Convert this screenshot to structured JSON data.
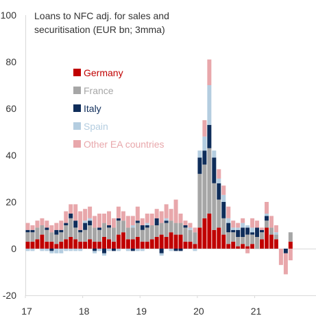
{
  "chart_data": {
    "type": "bar",
    "stacked": true,
    "title_lines": [
      "Loans to NFC adj. for sales and",
      "securitisation (EUR bn; 3mma)"
    ],
    "xlabel": "",
    "ylabel": "",
    "ylim": [
      -20,
      100
    ],
    "yticks": [
      -20,
      0,
      20,
      40,
      60,
      80,
      100
    ],
    "x_tick_labels": [
      "17",
      "18",
      "19",
      "20",
      "21"
    ],
    "x_tick_index": [
      0,
      12,
      24,
      36,
      48
    ],
    "grid": false,
    "legend_placement": "upper-left",
    "series": [
      {
        "name": "Germany",
        "color": "#C00000",
        "values": [
          3,
          3,
          4,
          6,
          3,
          3,
          2,
          3,
          4,
          5,
          4,
          3,
          3,
          4,
          3,
          3,
          5,
          4,
          3,
          6,
          7,
          4,
          4,
          5,
          3,
          3,
          4,
          5,
          6,
          5,
          7,
          6,
          6,
          3,
          3,
          2,
          9,
          13,
          15,
          8,
          9,
          6,
          2,
          3,
          1,
          2,
          1,
          2,
          0,
          4,
          9,
          6,
          4,
          0,
          0,
          3
        ]
      },
      {
        "name": "France",
        "color": "#A6A6A6",
        "values": [
          4,
          4,
          5,
          4,
          5,
          4,
          4,
          4,
          6,
          8,
          5,
          4,
          5,
          6,
          6,
          5,
          6,
          5,
          6,
          6,
          5,
          5,
          5,
          6,
          5,
          6,
          6,
          5,
          5,
          6,
          5,
          5,
          5,
          6,
          5,
          5,
          23,
          23,
          28,
          20,
          12,
          7,
          5,
          4,
          4,
          3,
          5,
          4,
          5,
          3,
          3,
          3,
          2,
          0,
          0,
          4
        ]
      },
      {
        "name": "Italy",
        "color": "#0F2D5A",
        "values": [
          1,
          1,
          0,
          0,
          1,
          -1,
          2,
          1,
          1,
          2,
          3,
          1,
          3,
          2,
          -1,
          1,
          -2,
          1,
          -1,
          1,
          0,
          0,
          -1,
          1,
          2,
          1,
          0,
          3,
          -2,
          1,
          0,
          -1,
          -1,
          1,
          0,
          0,
          7,
          6,
          10,
          11,
          7,
          7,
          4,
          1,
          3,
          4,
          3,
          1,
          4,
          1,
          2,
          0,
          0,
          0,
          -2,
          0
        ]
      },
      {
        "name": "Spain",
        "color": "#B4CDE0",
        "values": [
          -1,
          -1,
          0,
          -1,
          -1,
          -1,
          -2,
          -2,
          -1,
          -1,
          -1,
          -1,
          1,
          1,
          -1,
          -1,
          -1,
          -1,
          0,
          -1,
          0,
          -1,
          1,
          -1,
          -1,
          1,
          0,
          0,
          -1,
          1,
          -1,
          0,
          0,
          0,
          1,
          -1,
          3,
          6,
          17,
          3,
          2,
          3,
          2,
          1,
          1,
          2,
          1,
          2,
          0,
          0,
          1,
          0,
          1,
          0,
          0,
          0
        ]
      },
      {
        "name": "Other EA countries",
        "color": "#E8A7AB",
        "values": [
          3,
          2,
          3,
          3,
          3,
          3,
          3,
          4,
          5,
          4,
          7,
          8,
          5,
          5,
          5,
          6,
          4,
          6,
          4,
          5,
          4,
          5,
          4,
          6,
          3,
          4,
          5,
          4,
          5,
          6,
          5,
          10,
          4,
          2,
          2,
          2,
          0,
          7,
          11,
          0,
          4,
          4,
          5,
          3,
          2,
          2,
          -2,
          4,
          3,
          1,
          5,
          5,
          3,
          -7,
          -9,
          -5
        ]
      }
    ]
  }
}
